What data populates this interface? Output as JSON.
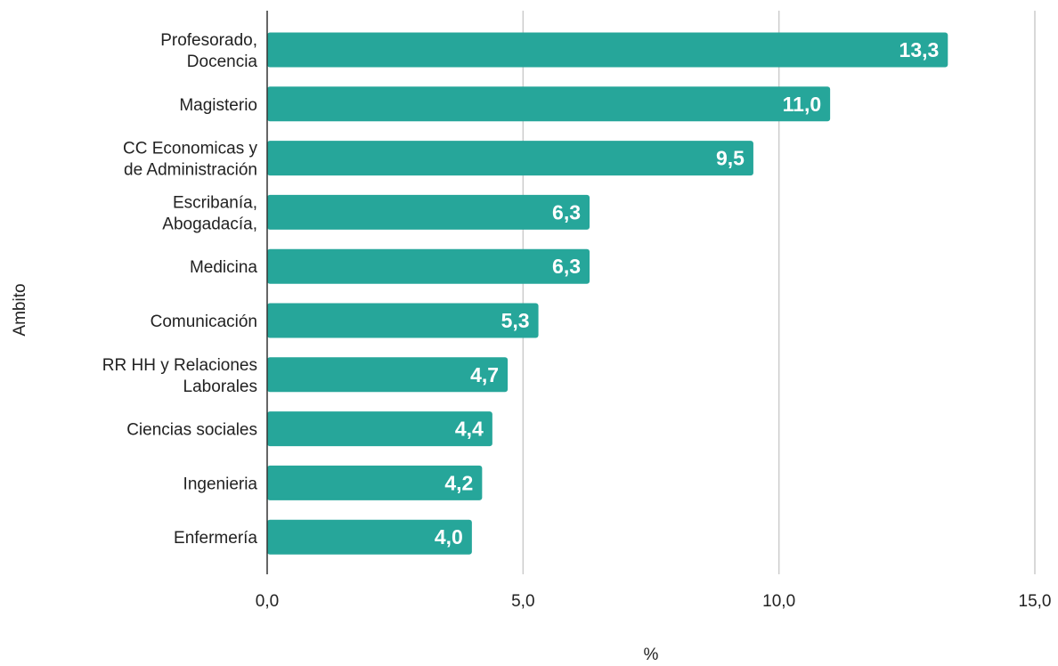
{
  "chart_data": {
    "type": "bar",
    "orientation": "horizontal",
    "title": "",
    "xlabel": "%",
    "ylabel": "Ambito",
    "xlim": [
      0,
      15
    ],
    "xticks": [
      0,
      5,
      10,
      15
    ],
    "xtick_labels": [
      "0,0",
      "5,0",
      "10,0",
      "15,0"
    ],
    "grid": true,
    "bar_color": "#26a69a",
    "data_label_color": "#ffffff",
    "categories": [
      [
        "Profesorado,",
        "Docencia"
      ],
      [
        "Magisterio"
      ],
      [
        "CC Economicas y",
        "de Administración"
      ],
      [
        "Escribanía,",
        "Abogadacía,"
      ],
      [
        "Medicina"
      ],
      [
        "Comunicación"
      ],
      [
        "RR HH y Relaciones",
        "Laborales"
      ],
      [
        "Ciencias sociales"
      ],
      [
        "Ingenieria"
      ],
      [
        "Enfermería"
      ]
    ],
    "values": [
      13.3,
      11.0,
      9.5,
      6.3,
      6.3,
      5.3,
      4.7,
      4.4,
      4.2,
      4.0
    ],
    "value_labels": [
      "13,3",
      "11,0",
      "9,5",
      "6,3",
      "6,3",
      "5,3",
      "4,7",
      "4,4",
      "4,2",
      "4,0"
    ]
  }
}
